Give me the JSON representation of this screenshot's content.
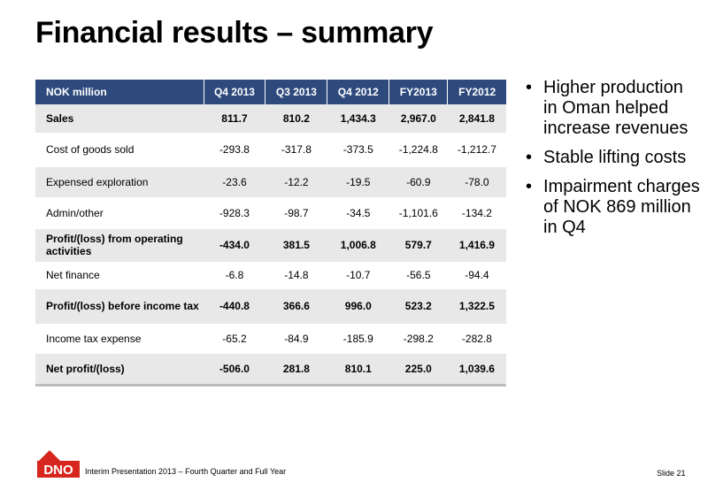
{
  "title": "Financial results – summary",
  "table": {
    "headers": [
      "NOK million",
      "Q4 2013",
      "Q3 2013",
      "Q4 2012",
      "FY2013",
      "FY2012"
    ],
    "rows": [
      {
        "label": "Sales",
        "values": [
          "811.7",
          "810.2",
          "1,434.3",
          "2,967.0",
          "2,841.8"
        ]
      },
      {
        "label": "Cost of goods sold",
        "values": [
          "-293.8",
          "-317.8",
          "-373.5",
          "-1,224.8",
          "-1,212.7"
        ]
      },
      {
        "label": "Expensed exploration",
        "values": [
          "-23.6",
          "-12.2",
          "-19.5",
          "-60.9",
          "-78.0"
        ]
      },
      {
        "label": "Admin/other",
        "values": [
          "-928.3",
          "-98.7",
          "-34.5",
          "-1,101.6",
          "-134.2"
        ]
      },
      {
        "label": "Profit/(loss) from operating activities",
        "values": [
          "-434.0",
          "381.5",
          "1,006.8",
          "579.7",
          "1,416.9"
        ]
      },
      {
        "label": "Net finance",
        "values": [
          "-6.8",
          "-14.8",
          "-10.7",
          "-56.5",
          "-94.4"
        ]
      },
      {
        "label": "Profit/(loss) before income tax",
        "values": [
          "-440.8",
          "366.6",
          "996.0",
          "523.2",
          "1,322.5"
        ]
      },
      {
        "label": "Income tax expense",
        "values": [
          "-65.2",
          "-84.9",
          "-185.9",
          "-298.2",
          "-282.8"
        ]
      },
      {
        "label": "Net profit/(loss)",
        "values": [
          "-506.0",
          "281.8",
          "810.1",
          "225.0",
          "1,039.6"
        ]
      }
    ]
  },
  "bullets": [
    "Higher production in Oman helped increase revenues",
    "Stable lifting costs",
    "Impairment charges of NOK 869 million in Q4"
  ],
  "logo_text": "DNO",
  "footer": "Interim Presentation 2013 – Fourth Quarter and Full Year",
  "slide_number": "Slide 21",
  "colors": {
    "header_bg": "#2e4a7d",
    "row_shade": "#e8e8e8",
    "logo_red": "#d7261e"
  }
}
